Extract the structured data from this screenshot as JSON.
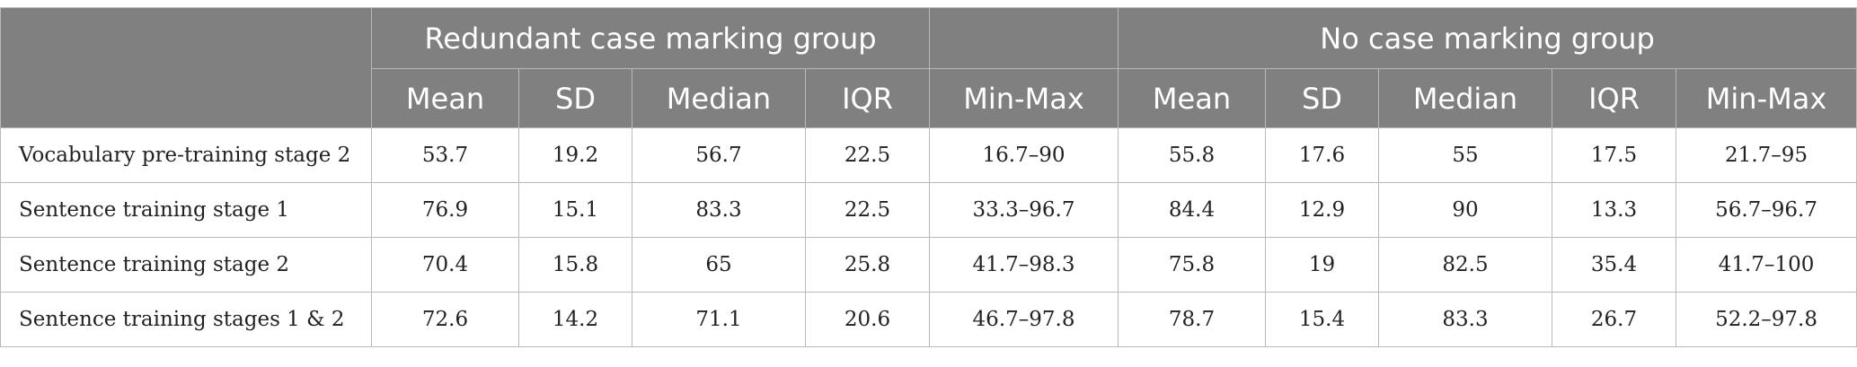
{
  "table": {
    "group_headers": [
      "",
      "Redundant case marking group",
      "",
      "No case marking group"
    ],
    "column_headers": [
      "Mean",
      "SD",
      "Median",
      "IQR",
      "Min-Max",
      "Mean",
      "SD",
      "Median",
      "IQR",
      "Min-Max"
    ],
    "rows": [
      {
        "label": "Vocabulary pre-training stage 2",
        "cells": [
          "53.7",
          "19.2",
          "56.7",
          "22.5",
          "16.7–90",
          "55.8",
          "17.6",
          "55",
          "17.5",
          "21.7–95"
        ]
      },
      {
        "label": "Sentence training stage 1",
        "cells": [
          "76.9",
          "15.1",
          "83.3",
          "22.5",
          "33.3–96.7",
          "84.4",
          "12.9",
          "90",
          "13.3",
          "56.7–96.7"
        ]
      },
      {
        "label": "Sentence training stage 2",
        "cells": [
          "70.4",
          "15.8",
          "65",
          "25.8",
          "41.7–98.3",
          "75.8",
          "19",
          "82.5",
          "35.4",
          "41.7–100"
        ]
      },
      {
        "label": "Sentence training stages 1 & 2",
        "cells": [
          "72.6",
          "14.2",
          "71.1",
          "20.6",
          "46.7–97.8",
          "78.7",
          "15.4",
          "83.3",
          "26.7",
          "52.2–97.8"
        ]
      }
    ]
  }
}
